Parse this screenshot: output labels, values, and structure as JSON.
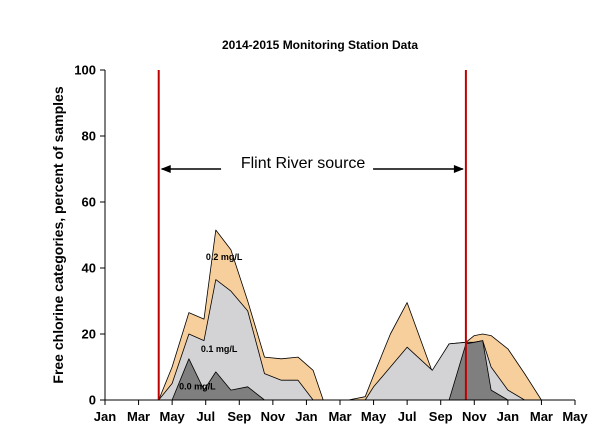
{
  "chart_data": {
    "type": "area",
    "title": "2014-2015 Monitoring  Station Data",
    "xlabel": "",
    "ylabel": "Free chlorine categories, percent of samples",
    "ylim": [
      0,
      100
    ],
    "yticks": [
      0,
      20,
      40,
      60,
      80,
      100
    ],
    "xlim": [
      0,
      28
    ],
    "x_unit": "months starting Jan 2014",
    "x_tick_positions": [
      0,
      2,
      4,
      6,
      8,
      10,
      12,
      14,
      16,
      18,
      20,
      22,
      24,
      26,
      28
    ],
    "x_tick_labels": [
      "Jan",
      "Mar",
      "May",
      "Jul",
      "Sep",
      "Nov",
      "Jan",
      "Mar",
      "May",
      "Jul",
      "Sep",
      "Nov",
      "Jan",
      "Mar",
      "May"
    ],
    "grid": false,
    "legend": "none (inline labels)",
    "stacking": "cumulative",
    "series": [
      {
        "name": "0.2 mg/L",
        "color": "#f7cf9c",
        "x": [
          3.2,
          4.0,
          5.0,
          5.9,
          6.6,
          7.5,
          8.5,
          9.5,
          10.5,
          11.5,
          12.4,
          13.0,
          14.0,
          14.5,
          15.5,
          16.0,
          17.0,
          18.0,
          19.5,
          20.5,
          21.5,
          22.0,
          22.5,
          23.0,
          24.0,
          25.0,
          26.0
        ],
        "values": [
          0,
          10,
          26.5,
          24.5,
          51.5,
          45.5,
          30,
          13,
          12.5,
          13,
          9,
          0,
          0,
          0,
          1,
          7.5,
          20,
          29.5,
          8.5,
          17,
          17.5,
          19.5,
          20,
          19.5,
          15.5,
          8,
          0
        ]
      },
      {
        "name": "0.1 mg/L",
        "color": "#d3d3d5",
        "x": [
          3.2,
          4.0,
          5.0,
          5.9,
          6.6,
          7.5,
          8.5,
          9.5,
          10.5,
          11.5,
          12.4,
          13.0,
          14.0,
          14.5,
          15.5,
          16.0,
          17.0,
          18.0,
          19.5,
          20.5,
          21.5,
          22.0,
          22.5,
          23.0,
          24.0,
          25.0,
          26.0
        ],
        "values": [
          0,
          5,
          20,
          18,
          36.5,
          33,
          27,
          8,
          6,
          6,
          0,
          0,
          0,
          0,
          0,
          4,
          10,
          16,
          9,
          17,
          17.5,
          17.5,
          18,
          10,
          3,
          0,
          0
        ]
      },
      {
        "name": "0.0 mg/L",
        "color": "#7f7f7f",
        "x": [
          3.2,
          4.0,
          5.0,
          5.9,
          6.6,
          7.5,
          8.5,
          9.5,
          10.5,
          11.5,
          12.4,
          13.0,
          14.0,
          14.5,
          15.5,
          16.0,
          17.0,
          18.0,
          19.5,
          20.5,
          21.5,
          22.0,
          22.5,
          23.0,
          24.0,
          25.0,
          26.0
        ],
        "values": [
          0,
          0,
          12.5,
          3,
          8.5,
          3,
          4,
          0,
          0,
          0,
          0,
          0,
          0,
          0,
          0,
          0,
          0,
          0,
          0,
          0,
          17,
          17.5,
          18,
          3,
          0,
          0,
          0
        ]
      }
    ],
    "series_label_positions": [
      {
        "text": "0.2 mg/L",
        "x": 7.1,
        "y": 42.5
      },
      {
        "text": "0.1 mg/L",
        "x": 6.8,
        "y": 14.5
      },
      {
        "text": "0.0 mg/L",
        "x": 5.5,
        "y": 3.2
      }
    ],
    "vertical_lines": [
      {
        "x": 3.2,
        "color": "#c00000"
      },
      {
        "x": 21.5,
        "color": "#c00000"
      }
    ],
    "annotation": {
      "text": "Flint River source",
      "y": 70,
      "from_x": 3.2,
      "to_x": 21.5,
      "text_x": 11.8
    }
  }
}
